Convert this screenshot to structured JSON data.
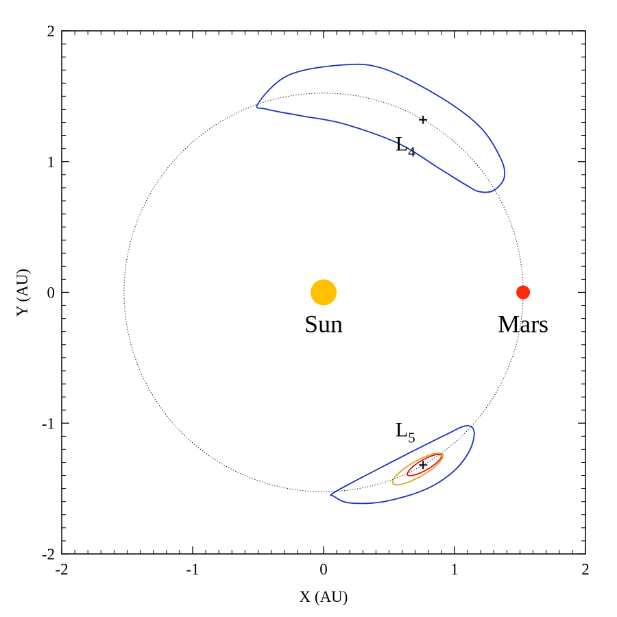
{
  "chart_data": {
    "type": "orbit-plot",
    "xlabel": "X (AU)",
    "ylabel": "Y (AU)",
    "xlim": [
      -2,
      2
    ],
    "ylim": [
      -2,
      2
    ],
    "xticks": [
      -2,
      -1,
      0,
      1,
      2
    ],
    "yticks": [
      -2,
      -1,
      0,
      1,
      2
    ],
    "minor_divisions": 10,
    "orbit_radius": 1.524,
    "bodies": [
      {
        "label": "Sun",
        "x": 0,
        "y": 0,
        "color": "#ffc000",
        "marker": "large"
      },
      {
        "label": "Mars",
        "x": 1.524,
        "y": 0,
        "color": "#ff2a0a",
        "marker": "small"
      }
    ],
    "lagrange_points": [
      {
        "label": "L",
        "sub": "4",
        "x": 0.76,
        "y": 1.32,
        "placement": "below"
      },
      {
        "label": "L",
        "sub": "5",
        "x": 0.76,
        "y": -1.32,
        "placement": "above"
      }
    ],
    "curves": [
      {
        "color": "#1a2fc0",
        "x": [
          -0.503,
          -0.27,
          0.15,
          0.46,
          0.88,
          1.19,
          1.35,
          1.38,
          1.3,
          1.19,
          1.09,
          0.88,
          0.57,
          0.15,
          -0.17,
          -0.43
        ],
        "y": [
          1.44,
          1.66,
          1.74,
          1.71,
          1.5,
          1.27,
          1.03,
          0.88,
          0.78,
          0.77,
          0.82,
          0.95,
          1.14,
          1.29,
          1.35,
          1.4
        ]
      },
      {
        "color": "#1a2fc0",
        "x": [
          0.08,
          0.36,
          0.67,
          0.93,
          1.09,
          1.15,
          1.11,
          0.98,
          0.77,
          0.46,
          0.2,
          0.08
        ],
        "y": [
          -1.53,
          -1.38,
          -1.22,
          -1.09,
          -1.02,
          -1.07,
          -1.22,
          -1.38,
          -1.51,
          -1.6,
          -1.61,
          -1.56
        ]
      },
      {
        "color": "#e8a020",
        "x": [
          0.911,
          0.834,
          0.69,
          0.564,
          0.529,
          0.606,
          0.75,
          0.876
        ],
        "y": [
          -1.24,
          -1.235,
          -1.298,
          -1.391,
          -1.46,
          -1.465,
          -1.402,
          -1.309
        ]
      },
      {
        "color": "#dd1111",
        "x": [
          0.9,
          0.848,
          0.75,
          0.664,
          0.64,
          0.692,
          0.79,
          0.876
        ],
        "y": [
          -1.245,
          -1.243,
          -1.285,
          -1.349,
          -1.395,
          -1.397,
          -1.355,
          -1.291
        ]
      }
    ]
  }
}
